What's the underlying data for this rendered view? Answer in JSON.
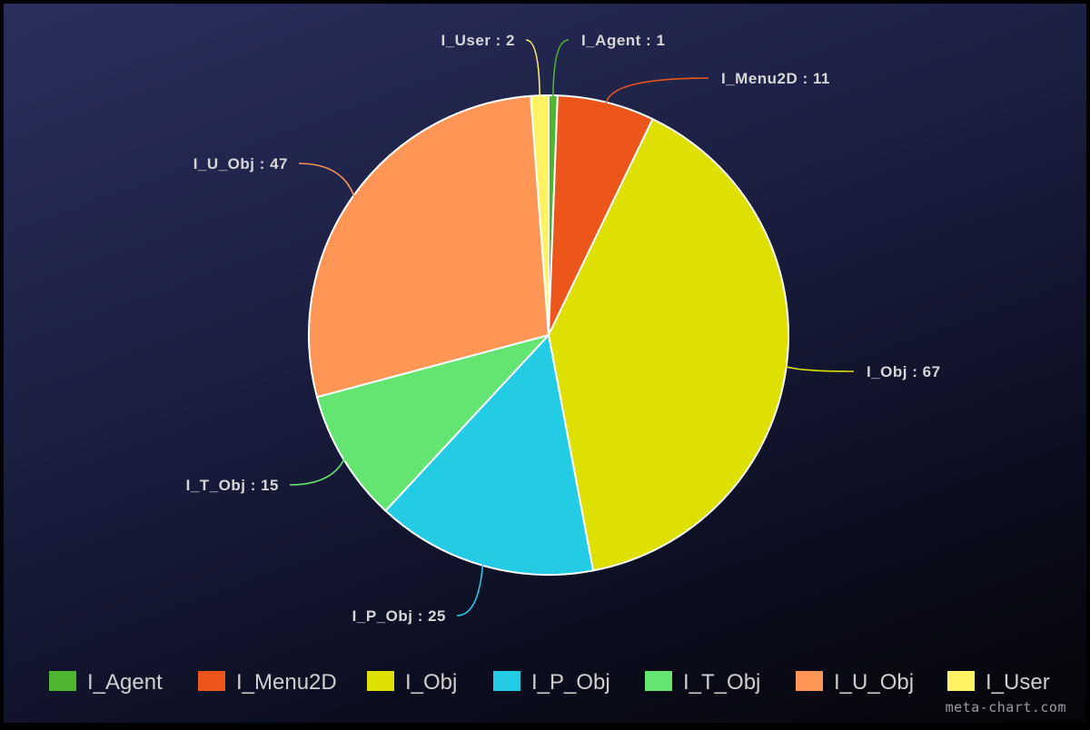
{
  "chart_data": {
    "type": "pie",
    "title": "",
    "categories": [
      "I_Agent",
      "I_Menu2D",
      "I_Obj",
      "I_P_Obj",
      "I_T_Obj",
      "I_U_Obj",
      "I_User"
    ],
    "values": [
      1,
      11,
      67,
      25,
      15,
      47,
      2
    ],
    "colors": [
      "#4db52f",
      "#ec561b",
      "#dde000",
      "#24cbe5",
      "#64e572",
      "#ff9655",
      "#fff263"
    ],
    "data_labels": [
      "I_Agent : 1",
      "I_Menu2D : 11",
      "I_Obj : 67",
      "I_P_Obj : 25",
      "I_T_Obj : 15",
      "I_U_Obj : 47",
      "I_User : 2"
    ],
    "start_angle": "top",
    "direction": "clockwise",
    "legend_position": "bottom"
  },
  "credit": "meta-chart.com"
}
